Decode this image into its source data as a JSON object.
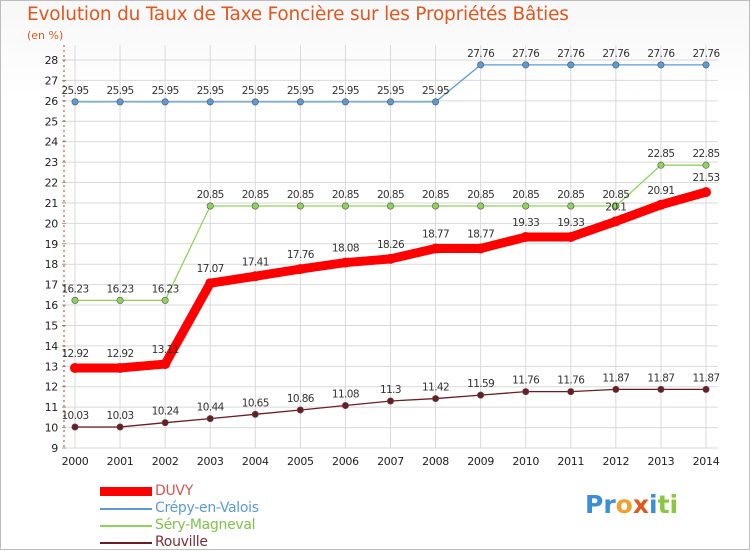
{
  "title": "Evolution du Taux de Taxe Foncière sur les Propriétés Bâties",
  "subtitle": "(en %)",
  "logo": {
    "letters": [
      "P",
      "r",
      "o",
      "x",
      "i",
      "t",
      "i"
    ],
    "colors": [
      "#3b8ed8",
      "#3b8ed8",
      "#f0a030",
      "#e05a1e",
      "#3b8ed8",
      "#8cc63f",
      "#8cc63f"
    ]
  },
  "chart_data": {
    "type": "line",
    "title": "Evolution du Taux de Taxe Foncière sur les Propriétés Bâties",
    "ylabel": "(en %)",
    "xlabel": "",
    "x": [
      "2000",
      "2001",
      "2002",
      "2003",
      "2004",
      "2005",
      "2006",
      "2007",
      "2008",
      "2009",
      "2010",
      "2011",
      "2012",
      "2013",
      "2014"
    ],
    "ylim": [
      9,
      28
    ],
    "yticks": [
      "9",
      "10",
      "11",
      "12",
      "13",
      "14",
      "15",
      "16",
      "17",
      "18",
      "19",
      "20",
      "21",
      "22",
      "23",
      "24",
      "25",
      "26",
      "27",
      "28"
    ],
    "grid": true,
    "legend_position": "bottom-left",
    "series": [
      {
        "name": "DUVY",
        "color": "#ff0000",
        "values": [
          12.92,
          12.92,
          13.11,
          17.07,
          17.41,
          17.76,
          18.08,
          18.26,
          18.77,
          18.77,
          19.33,
          19.33,
          20.1,
          20.91,
          21.53
        ],
        "labels": [
          "12.92",
          "12.92",
          "13.11",
          "17.07",
          "17.41",
          "17.76",
          "18.08",
          "18.26",
          "18.77",
          "18.77",
          "19.33",
          "19.33",
          "20.1",
          "20.91",
          "21.53"
        ]
      },
      {
        "name": "Crépy-en-Valois",
        "color": "#5b9bd5",
        "values": [
          25.95,
          25.95,
          25.95,
          25.95,
          25.95,
          25.95,
          25.95,
          25.95,
          25.95,
          27.76,
          27.76,
          27.76,
          27.76,
          27.76,
          27.76
        ],
        "labels": [
          "25.95",
          "25.95",
          "25.95",
          "25.95",
          "25.95",
          "25.95",
          "25.95",
          "25.95",
          "25.95",
          "27.76",
          "27.76",
          "27.76",
          "27.76",
          "27.76",
          "27.76"
        ]
      },
      {
        "name": "Séry-Magneval",
        "color": "#8ed45a",
        "values": [
          16.23,
          16.23,
          16.23,
          20.85,
          20.85,
          20.85,
          20.85,
          20.85,
          20.85,
          20.85,
          20.85,
          20.85,
          20.85,
          22.85,
          22.85
        ],
        "labels": [
          "16.23",
          "16.23",
          "16.23",
          "20.85",
          "20.85",
          "20.85",
          "20.85",
          "20.85",
          "20.85",
          "20.85",
          "20.85",
          "20.85",
          "20.85",
          "22.85",
          "22.85"
        ]
      },
      {
        "name": "Rouville",
        "color": "#6b1d22",
        "values": [
          10.03,
          10.03,
          10.24,
          10.44,
          10.65,
          10.86,
          11.08,
          11.3,
          11.42,
          11.59,
          11.76,
          11.76,
          11.87,
          11.87,
          11.87
        ],
        "labels": [
          "10.03",
          "10.03",
          "10.24",
          "10.44",
          "10.65",
          "10.86",
          "11.08",
          "11.3",
          "11.42",
          "11.59",
          "11.76",
          "11.76",
          "11.87",
          "11.87",
          "11.87"
        ]
      }
    ]
  }
}
